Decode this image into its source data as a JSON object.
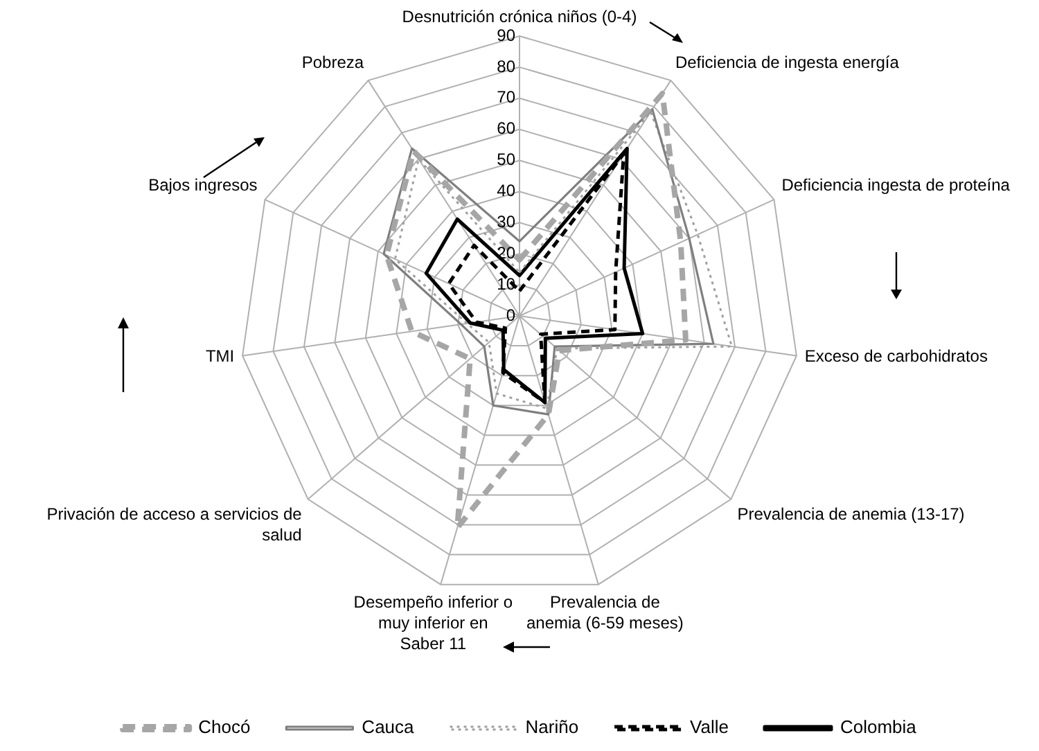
{
  "chart_data": {
    "type": "radar",
    "categories": [
      "Desnutrición crónica niños (0-4)",
      "Deficiencia de ingesta energía",
      "Deficiencia ingesta de proteína",
      "Exceso de carbohidratos",
      "Prevalencia de anemia (13-17)",
      "Prevalencia de anemia (6-59 meses)",
      "Desempeño inferior o muy inferior en Saber 11",
      "Privación de acceso a servicios de salud",
      "TMI",
      "Bajos ingresos",
      "Pobreza"
    ],
    "series": [
      {
        "name": "Chocó",
        "color": "#a6a6a6",
        "line_style": "dashed",
        "values": [
          18,
          85,
          57,
          54,
          17,
          33,
          71,
          21,
          35,
          47,
          63
        ]
      },
      {
        "name": "Cauca",
        "color": "#7f7f7f",
        "line_style": "solid",
        "values": [
          24,
          79,
          60,
          63,
          15,
          33,
          30,
          15,
          19,
          48,
          64
        ]
      },
      {
        "name": "Nariño",
        "color": "#a0a0a0",
        "line_style": "dotted",
        "values": [
          14,
          78,
          63,
          69,
          16,
          31,
          26,
          13,
          17,
          44,
          60
        ]
      },
      {
        "name": "Valle",
        "color": "#000000",
        "line_style": "dashed",
        "values": [
          8,
          62,
          34,
          31,
          9,
          29,
          19,
          6,
          14,
          25,
          27
        ]
      },
      {
        "name": "Colombia",
        "color": "#000000",
        "line_style": "solid",
        "values": [
          13,
          64,
          37,
          40,
          11,
          29,
          18,
          7,
          16,
          33,
          37
        ]
      }
    ],
    "ylim": [
      0,
      90
    ],
    "yticks": [
      0,
      10,
      20,
      30,
      40,
      50,
      60,
      70,
      80,
      90
    ],
    "grid": true,
    "legend": "bottom",
    "marker": "none"
  }
}
